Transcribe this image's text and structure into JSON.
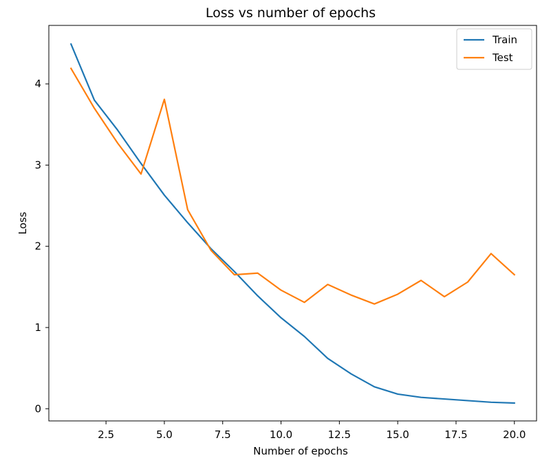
{
  "chart_data": {
    "type": "line",
    "title": "Loss vs number of epochs",
    "xlabel": "Number of epochs",
    "ylabel": "Loss",
    "x": [
      1,
      2,
      3,
      4,
      5,
      6,
      7,
      8,
      9,
      10,
      11,
      12,
      13,
      14,
      15,
      16,
      17,
      18,
      19,
      20
    ],
    "series": [
      {
        "name": "Train",
        "color": "#1f77b4",
        "values": [
          4.49,
          3.8,
          3.43,
          3.02,
          2.63,
          2.29,
          1.97,
          1.69,
          1.39,
          1.12,
          0.89,
          0.62,
          0.43,
          0.27,
          0.18,
          0.14,
          0.12,
          0.1,
          0.08,
          0.07
        ]
      },
      {
        "name": "Test",
        "color": "#ff7f0e",
        "values": [
          4.19,
          3.7,
          3.27,
          2.89,
          3.81,
          2.45,
          1.95,
          1.65,
          1.67,
          1.46,
          1.31,
          1.53,
          1.4,
          1.29,
          1.41,
          1.58,
          1.38,
          1.56,
          1.91,
          1.65
        ]
      }
    ],
    "xlim": [
      0.05,
      20.95
    ],
    "ylim": [
      -0.15,
      4.72
    ],
    "xticks": [
      2.5,
      5.0,
      7.5,
      10.0,
      12.5,
      15.0,
      17.5,
      20.0
    ],
    "xtick_labels": [
      "2.5",
      "5.0",
      "7.5",
      "10.0",
      "12.5",
      "15.0",
      "17.5",
      "20.0"
    ],
    "yticks": [
      0,
      1,
      2,
      3,
      4
    ],
    "ytick_labels": [
      "0",
      "1",
      "2",
      "3",
      "4"
    ],
    "grid": false,
    "legend_position": "top-right"
  }
}
